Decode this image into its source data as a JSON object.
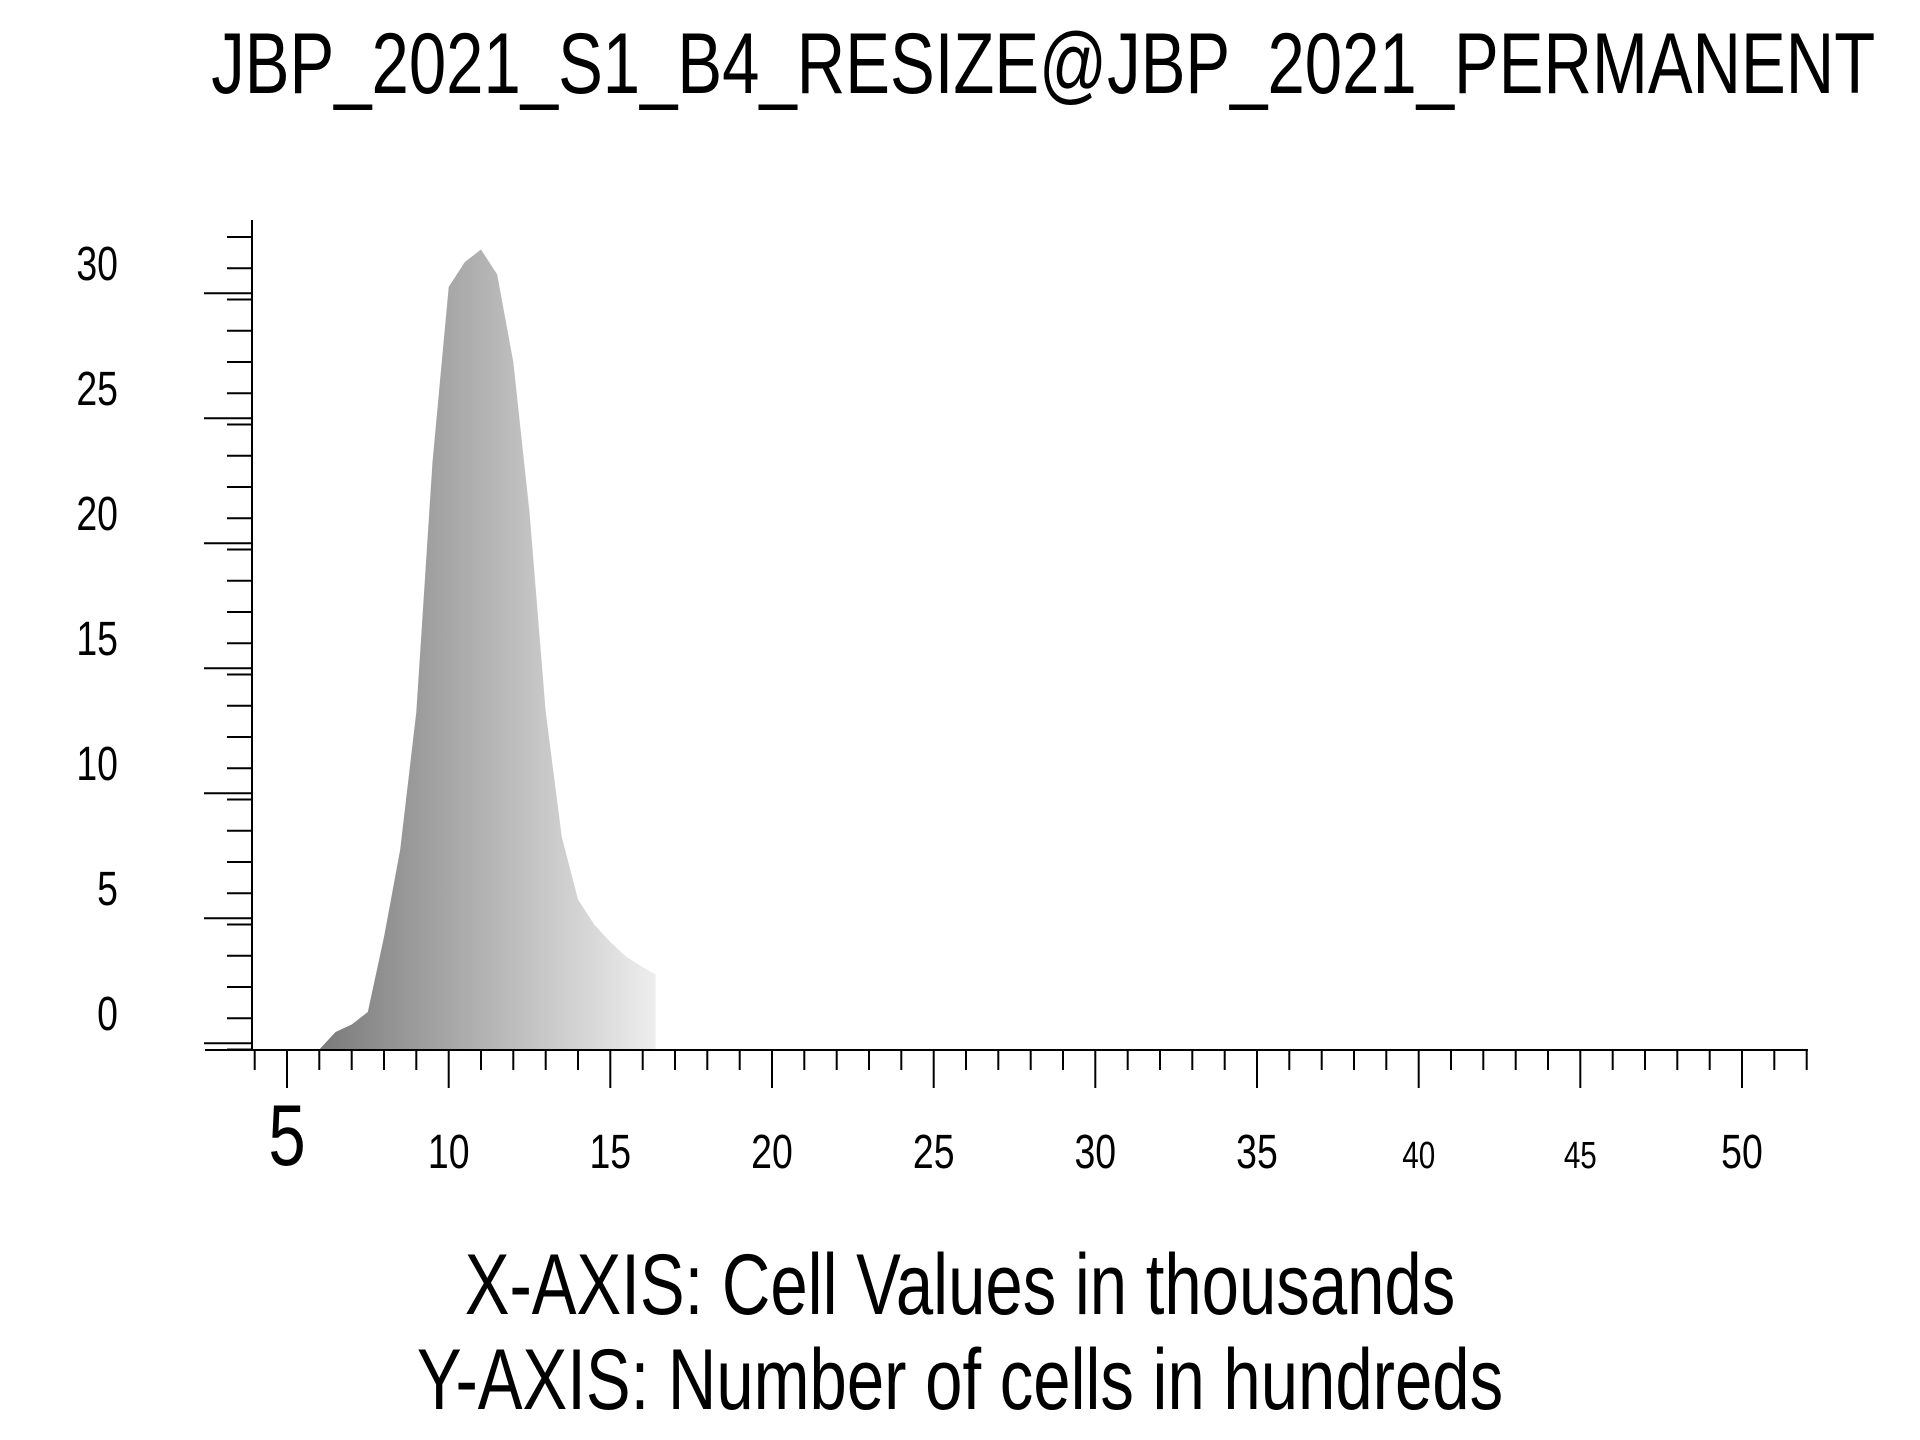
{
  "chart_data": {
    "type": "area",
    "title": "JBP_2021_S1_B4_RESIZE@JBP_2021_PERMANENT",
    "xlabel": "X-AXIS: Cell Values in thousands",
    "ylabel": "Y-AXIS: Number of cells in hundreds",
    "xlim": [
      4,
      52
    ],
    "ylim": [
      -1.5,
      32
    ],
    "x_ticks": [
      "5",
      "10",
      "15",
      "20",
      "25",
      "30",
      "35",
      "40",
      "45",
      "50"
    ],
    "y_ticks": [
      "0",
      "5",
      "10",
      "15",
      "20",
      "25",
      "30"
    ],
    "grid": false,
    "legend": "none",
    "series": [
      {
        "x": [
          6.0,
          6.5,
          7.0,
          7.5,
          8.0,
          8.5,
          9.0,
          9.5,
          10.0,
          10.5,
          11.0,
          11.5,
          12.0,
          12.5,
          13.0,
          13.5,
          14.0,
          14.5,
          15.0,
          15.5,
          16.0,
          16.4
        ],
        "values": [
          -1.5,
          -0.8,
          -0.5,
          0.0,
          3.0,
          6.5,
          12.0,
          22.0,
          29.0,
          30.0,
          30.5,
          29.5,
          26.0,
          20.0,
          12.0,
          7.0,
          4.5,
          3.5,
          2.8,
          2.2,
          1.8,
          1.5
        ]
      }
    ],
    "colors": {
      "fill_dark": "#7a7a7a",
      "fill_light": "#eeeeee",
      "axis": "#000000"
    }
  }
}
